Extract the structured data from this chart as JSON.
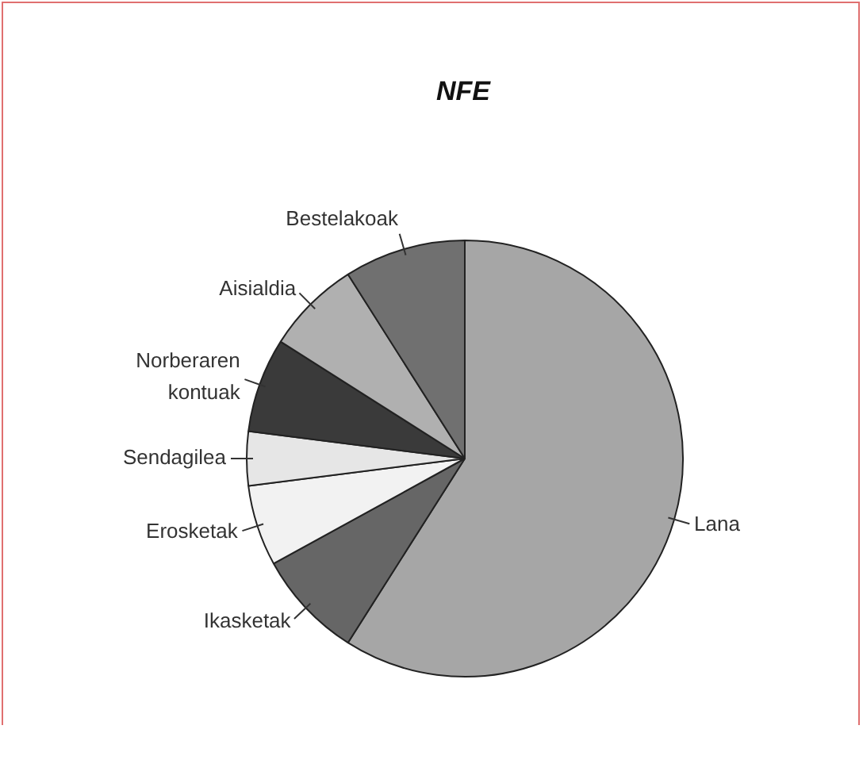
{
  "chart_data": {
    "type": "pie",
    "title": "NFE",
    "categories": [
      "Lana",
      "Ikasketak",
      "Erosketak",
      "Sendagilea",
      "Norberaren kontuak",
      "Aisialdia",
      "Bestelakoak"
    ],
    "values": [
      59,
      8,
      6,
      4,
      7,
      7,
      9
    ],
    "colors": [
      "#a6a6a6",
      "#666666",
      "#f2f2f2",
      "#e6e6e6",
      "#3a3a3a",
      "#b0b0b0",
      "#707070"
    ],
    "legend": false
  }
}
